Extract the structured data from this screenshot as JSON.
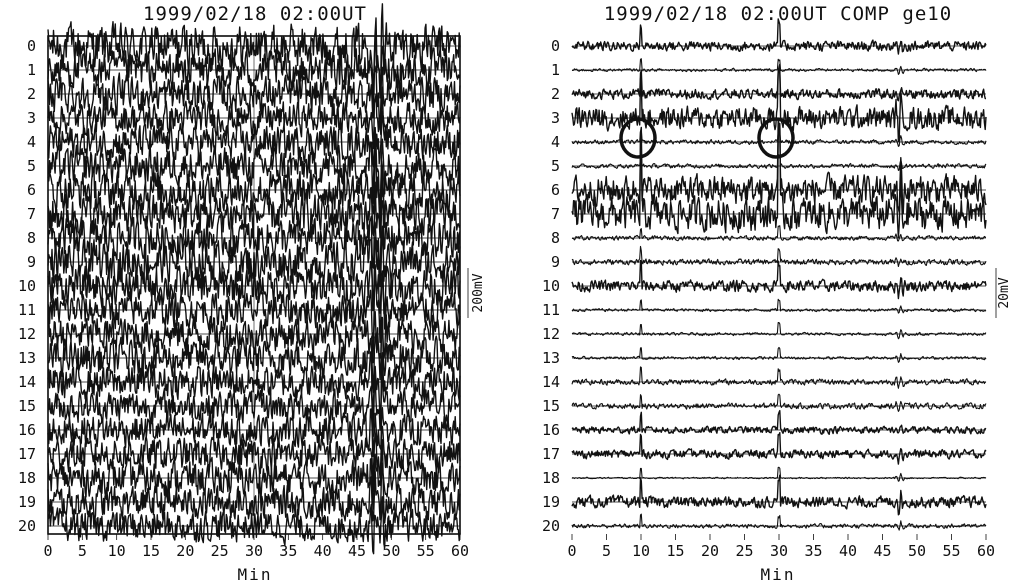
{
  "chart_data": [
    {
      "type": "line",
      "title": "1999/02/18 02:00UT",
      "xlabel": "Min",
      "x_ticks": [
        "0",
        "5",
        "10",
        "15",
        "20",
        "25",
        "30",
        "35",
        "40",
        "45",
        "50",
        "55",
        "60"
      ],
      "xlim": [
        0,
        60
      ],
      "channels": [
        "0",
        "1",
        "2",
        "3",
        "4",
        "5",
        "6",
        "7",
        "8",
        "9",
        "10",
        "11",
        "12",
        "13",
        "14",
        "15",
        "16",
        "17",
        "18",
        "19",
        "20"
      ],
      "scale_label": "200mV",
      "scale_mV": 200,
      "channel_amplitude_mV": [
        150,
        130,
        125,
        110,
        120,
        130,
        135,
        140,
        135,
        140,
        130,
        120,
        125,
        125,
        115,
        110,
        110,
        115,
        120,
        115,
        110
      ],
      "event_minutes": [
        47.5,
        48.5
      ],
      "vertical_grid_minutes": [
        0,
        30,
        48.5,
        60
      ],
      "grid": false
    },
    {
      "type": "line",
      "title": "1999/02/18 02:00UT COMP ge10",
      "xlabel": "Min",
      "x_ticks": [
        "0",
        "5",
        "10",
        "15",
        "20",
        "25",
        "30",
        "35",
        "40",
        "45",
        "50",
        "55",
        "60"
      ],
      "xlim": [
        0,
        60
      ],
      "channels": [
        "0",
        "1",
        "2",
        "3",
        "4",
        "5",
        "6",
        "7",
        "8",
        "9",
        "10",
        "11",
        "12",
        "13",
        "14",
        "15",
        "16",
        "17",
        "18",
        "19",
        "20"
      ],
      "scale_label": "20mV",
      "scale_mV": 20,
      "channel_amplitude_mV": [
        3.5,
        1,
        3.5,
        8,
        1.5,
        1.5,
        10,
        12,
        1.5,
        2,
        4,
        1,
        1,
        1,
        2,
        2,
        2.5,
        3,
        0.5,
        4,
        1.5
      ],
      "event_minutes": [
        47.5
      ],
      "marked_spikes_minutes": [
        10,
        30
      ],
      "marked_channel": "4",
      "grid": false
    }
  ]
}
